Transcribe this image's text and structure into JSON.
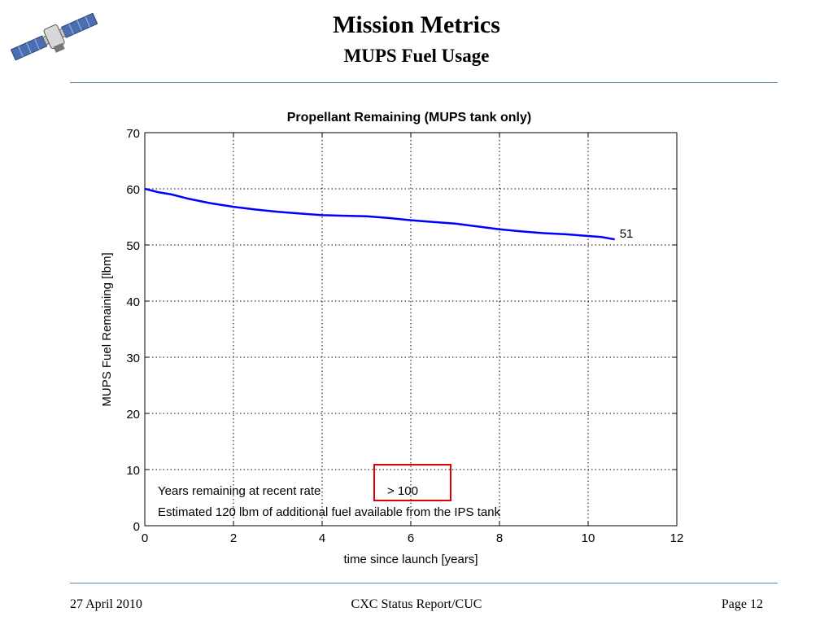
{
  "slide": {
    "title": "Mission Metrics",
    "subtitle": "MUPS Fuel Usage"
  },
  "footer": {
    "date": "27 April 2010",
    "center": "CXC Status Report/CUC",
    "page": "Page 12"
  },
  "logo": {
    "icon": "satellite-icon"
  },
  "chart_data": {
    "type": "line",
    "title": "Propellant Remaining (MUPS tank only)",
    "xlabel": "time since launch [years]",
    "ylabel": "MUPS Fuel Remaining [lbm]",
    "xlim": [
      0,
      12
    ],
    "ylim": [
      0,
      70
    ],
    "xticks": [
      "0",
      "2",
      "4",
      "6",
      "8",
      "10",
      "12"
    ],
    "yticks": [
      "0",
      "10",
      "20",
      "30",
      "40",
      "50",
      "60",
      "70"
    ],
    "grid": true,
    "series": [
      {
        "color": "#0000ff",
        "x": [
          0,
          0.3,
          0.6,
          1.0,
          1.5,
          2.0,
          2.5,
          3.0,
          3.5,
          4.0,
          4.5,
          5.0,
          5.5,
          6.0,
          6.5,
          7.0,
          7.5,
          8.0,
          8.5,
          9.0,
          9.5,
          10.0,
          10.3,
          10.6
        ],
        "y": [
          60,
          59.4,
          59.0,
          58.2,
          57.4,
          56.8,
          56.3,
          55.9,
          55.6,
          55.3,
          55.2,
          55.1,
          54.8,
          54.4,
          54.1,
          53.8,
          53.3,
          52.8,
          52.4,
          52.1,
          51.9,
          51.6,
          51.4,
          51.0
        ]
      }
    ],
    "end_label": "51",
    "annotations": {
      "years_label": "Years remaining at recent rate",
      "years_value": "> 100",
      "ips_note": "Estimated 120 lbm of additional fuel available from the IPS tank",
      "highlight_color": "#e00000"
    }
  }
}
